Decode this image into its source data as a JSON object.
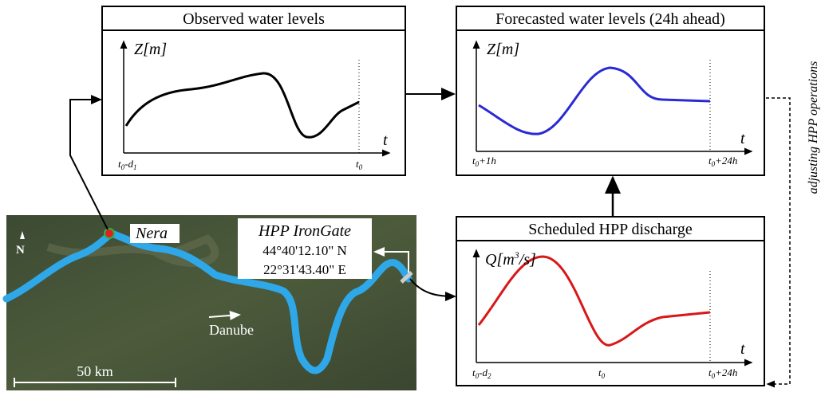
{
  "observed": {
    "title": "Observed water levels",
    "y_axis": [
      "Z[m]"
    ],
    "x_axis": [
      "t"
    ],
    "ticks": [
      [
        "t",
        "0",
        "-d",
        "1"
      ],
      [
        "t",
        "0"
      ]
    ]
  },
  "forecast": {
    "title": "Forecasted water levels (24h ahead)",
    "y_axis": [
      "Z[m]"
    ],
    "x_axis": [
      "t"
    ],
    "ticks": [
      [
        "t",
        "0",
        "+1h"
      ],
      [
        "t",
        "0",
        "+24h"
      ]
    ]
  },
  "discharge": {
    "title": "Scheduled HPP discharge",
    "y_axis": [
      "Q[m",
      "3",
      "/s]"
    ],
    "x_axis": [
      "t"
    ],
    "ticks": [
      [
        "t",
        "0",
        "-d",
        "2"
      ],
      [
        "t",
        "0"
      ],
      [
        "t",
        "0",
        "+24h"
      ]
    ]
  },
  "feedback": "adjusting HPP operations",
  "map": {
    "station": "Nera",
    "hpp": "HPP IronGate",
    "lat": "44°40'12.10\" N",
    "lon": "22°31'43.40\" E",
    "river": "Danube",
    "scale": "50 km",
    "north": "N"
  }
}
